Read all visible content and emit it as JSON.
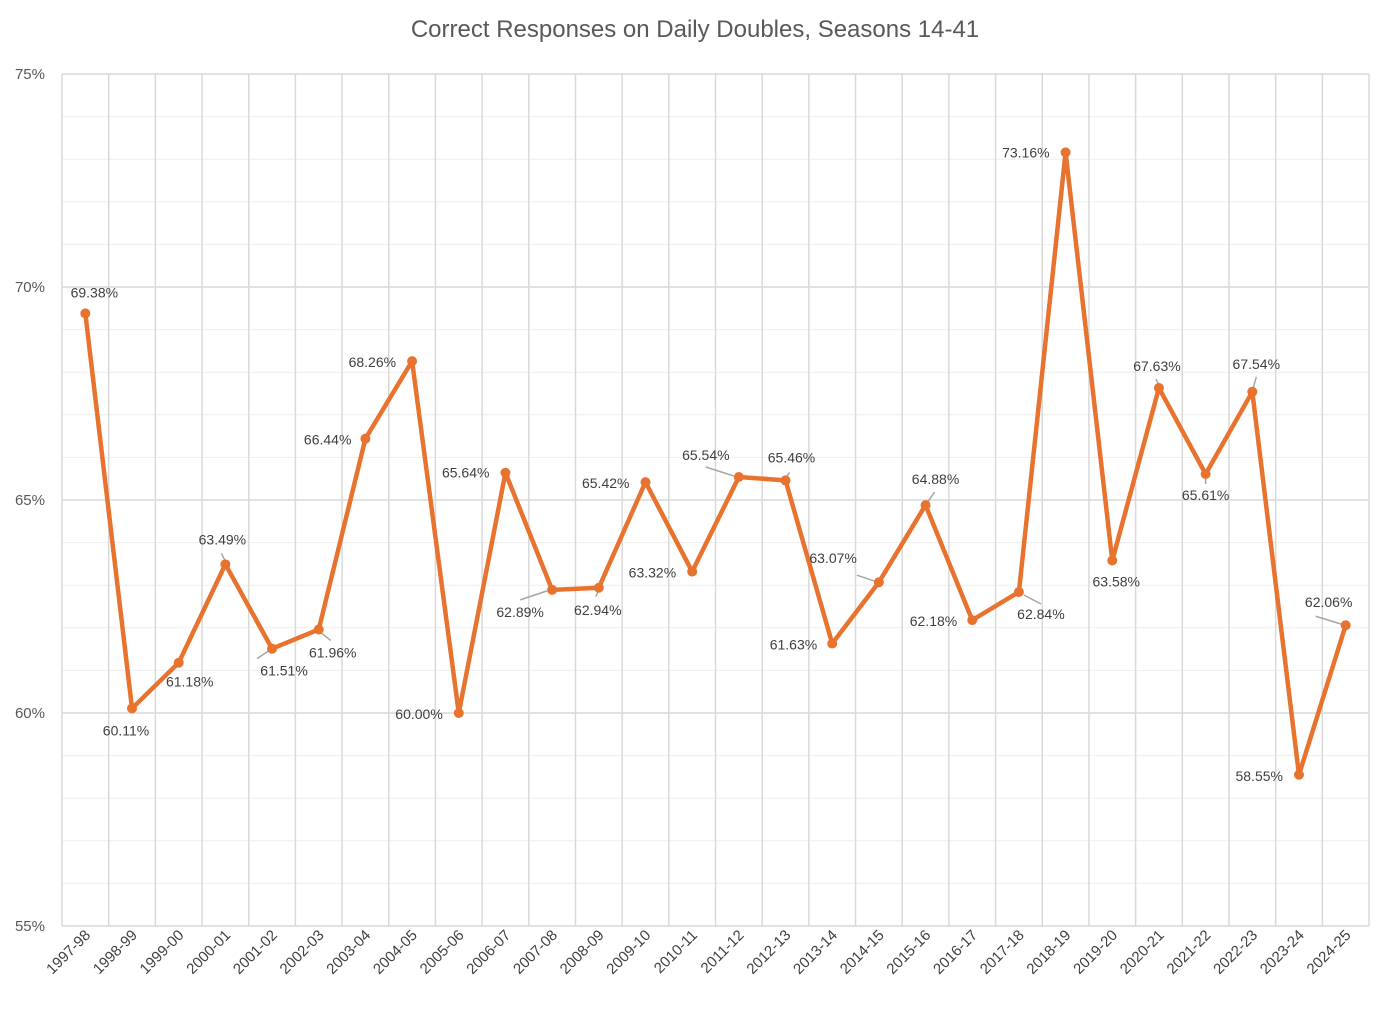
{
  "chart_data": {
    "type": "line",
    "title": "Correct Responses on Daily Doubles, Seasons 14-41",
    "xlabel": "",
    "ylabel": "",
    "ylim": [
      55,
      75
    ],
    "y_major_ticks": [
      55,
      60,
      65,
      70,
      75
    ],
    "y_tick_labels": [
      "55%",
      "60%",
      "65%",
      "70%",
      "75%"
    ],
    "minor_grid_step": 1,
    "grid": true,
    "legend": "none",
    "categories": [
      "1997-98",
      "1998-99",
      "1999-00",
      "2000-01",
      "2001-02",
      "2002-03",
      "2003-04",
      "2004-05",
      "2005-06",
      "2006-07",
      "2007-08",
      "2008-09",
      "2009-10",
      "2010-11",
      "2011-12",
      "2012-13",
      "2013-14",
      "2014-15",
      "2015-16",
      "2016-17",
      "2017-18",
      "2018-19",
      "2019-20",
      "2020-21",
      "2021-22",
      "2022-23",
      "2023-24",
      "2024-25"
    ],
    "series": [
      {
        "name": "Correct Responses",
        "color": "#E8732F",
        "values": [
          69.38,
          60.11,
          61.18,
          63.49,
          61.51,
          61.96,
          66.44,
          68.26,
          60.0,
          65.64,
          62.89,
          62.94,
          65.42,
          63.32,
          65.54,
          65.46,
          61.63,
          63.07,
          64.88,
          62.18,
          62.84,
          73.16,
          63.58,
          67.63,
          65.61,
          67.54,
          58.55,
          62.06
        ],
        "data_labels": [
          "69.38%",
          "60.11%",
          "61.18%",
          "63.49%",
          "61.51%",
          "61.96%",
          "66.44%",
          "68.26%",
          "60.00%",
          "65.64%",
          "62.89%",
          "62.94%",
          "65.42%",
          "63.32%",
          "65.54%",
          "65.46%",
          "61.63%",
          "63.07%",
          "64.88%",
          "62.18%",
          "62.84%",
          "73.16%",
          "63.58%",
          "67.63%",
          "65.61%",
          "67.54%",
          "58.55%",
          "62.06%"
        ]
      }
    ],
    "colors": {
      "grid_major": "#D9D9D9",
      "grid_minor": "#EEEEEE",
      "line": "#E8732F",
      "leader": "#A6A6A6"
    }
  }
}
